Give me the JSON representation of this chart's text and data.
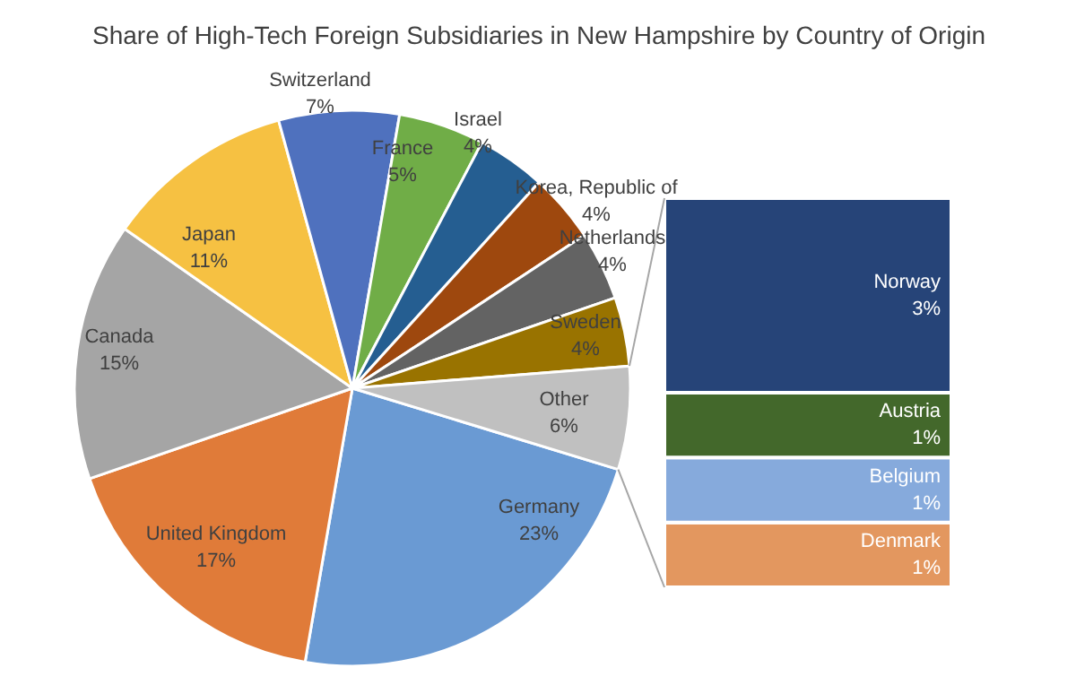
{
  "chart_data": [
    {
      "type": "pie",
      "title": "Share of High-Tech Foreign Subsidiaries in New Hampshire by Country of Origin",
      "categories": [
        "Germany",
        "United Kingdom",
        "Canada",
        "Japan",
        "Switzerland",
        "France",
        "Israel",
        "Korea, Republic of",
        "Netherlands",
        "Sweden",
        "Other"
      ],
      "values": [
        23,
        17,
        15,
        11,
        7,
        5,
        4,
        4,
        4,
        4,
        6
      ],
      "colors": [
        "#6a9ad3",
        "#e07b39",
        "#a5a5a5",
        "#f6c142",
        "#4f71be",
        "#70ad47",
        "#255e91",
        "#9e480e",
        "#636363",
        "#997300",
        "#c0c0c0"
      ],
      "value_labels": [
        "23%",
        "17%",
        "15%",
        "11%",
        "7%",
        "5%",
        "4%",
        "4%",
        "4%",
        "4%",
        "6%"
      ]
    },
    {
      "type": "bar",
      "stacked": true,
      "categories": [
        null
      ],
      "series": [
        {
          "name": "Denmark",
          "color": "#e3975f",
          "values": [
            1
          ],
          "value_labels": [
            "1%"
          ]
        },
        {
          "name": "Belgium",
          "color": "#86aadc",
          "values": [
            1
          ],
          "value_labels": [
            "1%"
          ]
        },
        {
          "name": "Austria",
          "color": "#43682b",
          "values": [
            1
          ],
          "value_labels": [
            "1%"
          ]
        },
        {
          "name": "Norway",
          "color": "#264478",
          "values": [
            3
          ],
          "value_labels": [
            "3%"
          ]
        }
      ]
    }
  ]
}
